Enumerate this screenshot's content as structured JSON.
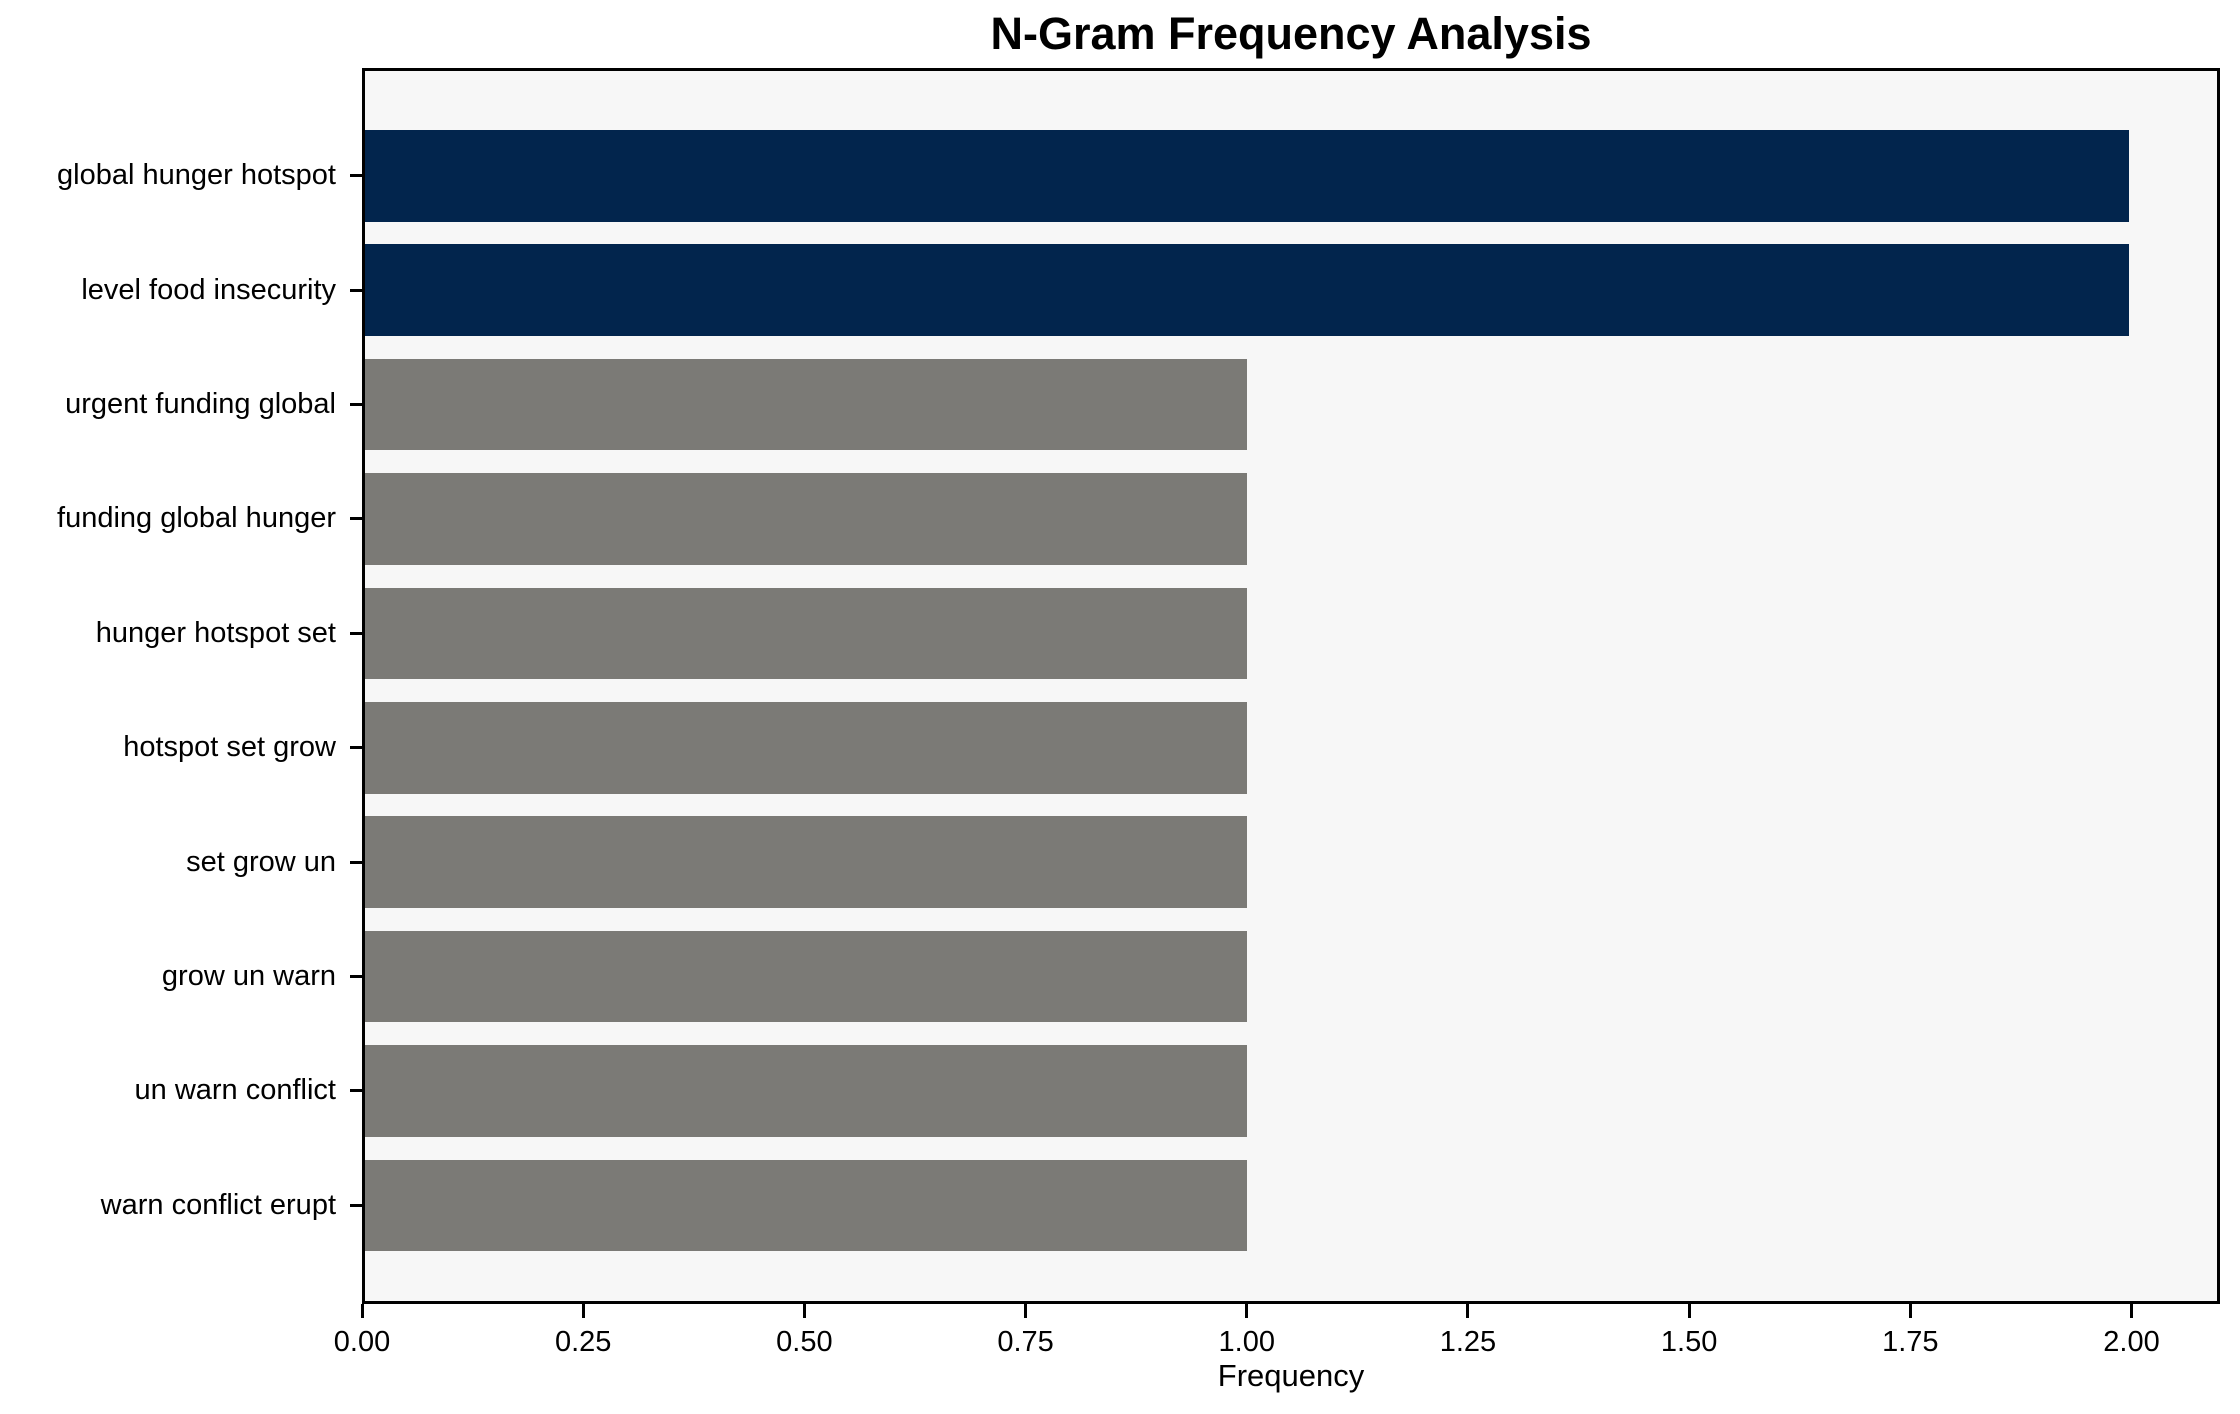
{
  "chart_data": {
    "type": "bar",
    "orientation": "horizontal",
    "title": "N-Gram Frequency Analysis",
    "xlabel": "Frequency",
    "ylabel": "",
    "categories": [
      "global hunger hotspot",
      "level food insecurity",
      "urgent funding global",
      "funding global hunger",
      "hunger hotspot set",
      "hotspot set grow",
      "set grow un",
      "grow un warn",
      "un warn conflict",
      "warn conflict erupt"
    ],
    "values": [
      2,
      2,
      1,
      1,
      1,
      1,
      1,
      1,
      1,
      1
    ],
    "bar_colors": [
      "#02254d",
      "#02254d",
      "#7b7a76",
      "#7b7a76",
      "#7b7a76",
      "#7b7a76",
      "#7b7a76",
      "#7b7a76",
      "#7b7a76",
      "#7b7a76"
    ],
    "xlim": [
      0,
      2.1
    ],
    "x_tick_values": [
      0,
      0.25,
      0.5,
      0.75,
      1.0,
      1.25,
      1.5,
      1.75,
      2.0
    ],
    "x_tick_labels": [
      "0.00",
      "0.25",
      "0.50",
      "0.75",
      "1.00",
      "1.25",
      "1.50",
      "1.75",
      "2.00"
    ],
    "grid": false,
    "legend": false,
    "colors": {
      "highlight": "#02254d",
      "default": "#7b7a76",
      "plot_background": "#f7f7f7",
      "figure_background": "#ffffff",
      "axis": "#000000",
      "text": "#000000"
    }
  }
}
